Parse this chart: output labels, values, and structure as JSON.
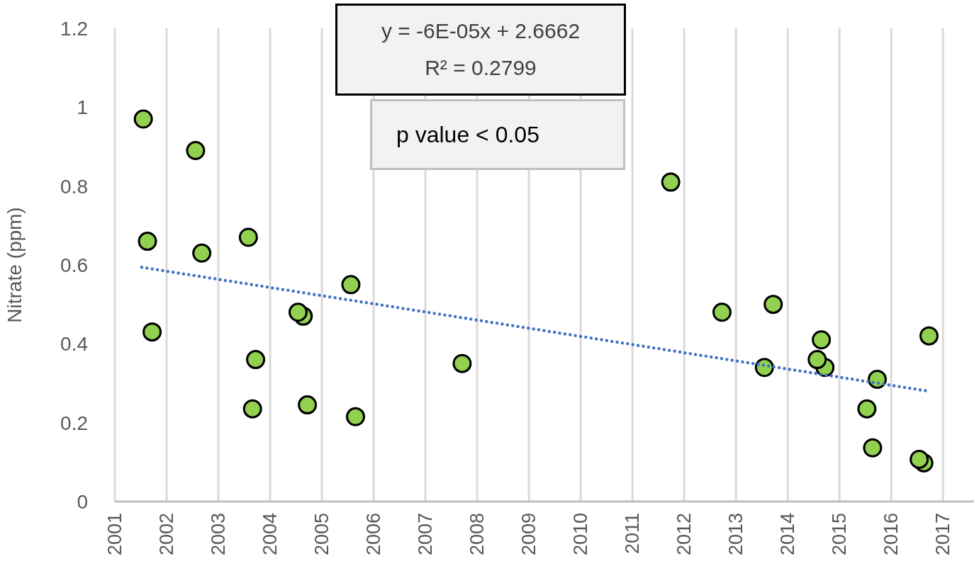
{
  "chart_data": {
    "type": "scatter",
    "ylabel": "Nitrate (ppm)",
    "xlim": [
      2001,
      2017.6
    ],
    "xticks": [
      2001,
      2002,
      2003,
      2004,
      2005,
      2006,
      2007,
      2008,
      2009,
      2010,
      2011,
      2012,
      2013,
      2014,
      2015,
      2016,
      2017
    ],
    "ylim": [
      0,
      1.2
    ],
    "yticks": [
      0,
      0.2,
      0.4,
      0.6,
      0.8,
      1,
      1.2
    ],
    "grid": "x",
    "marker": "circle",
    "annotations": [
      "y = -6E-05x + 2.6662",
      "R² = 0.2799",
      "p value < 0.05"
    ],
    "series": [
      {
        "color": "#92d050",
        "x": [
          2001.55,
          2002.56,
          2001.63,
          2002.68,
          2003.58,
          2001.72,
          2005.56,
          2004.54,
          2004.64,
          2003.72,
          2007.71,
          2003.66,
          2004.72,
          2005.65,
          2011.74,
          2012.73,
          2013.72,
          2013.55,
          2014.65,
          2014.57,
          2014.72,
          2015.73,
          2015.53,
          2015.64,
          2016.54,
          2016.63,
          2016.73
        ],
        "values": [
          0.97,
          0.89,
          0.66,
          0.63,
          0.67,
          0.43,
          0.55,
          0.48,
          0.47,
          0.36,
          0.35,
          0.235,
          0.245,
          0.215,
          0.81,
          0.48,
          0.5,
          0.34,
          0.41,
          0.36,
          0.34,
          0.31,
          0.235,
          0.136,
          0.107,
          0.098,
          0.42
        ]
      },
      {
        "type": "line",
        "color": "#4472c4",
        "line_style": "dotted",
        "marker": "none",
        "x": [
          2001.52,
          2016.66
        ],
        "values": [
          0.594,
          0.281
        ]
      }
    ]
  }
}
